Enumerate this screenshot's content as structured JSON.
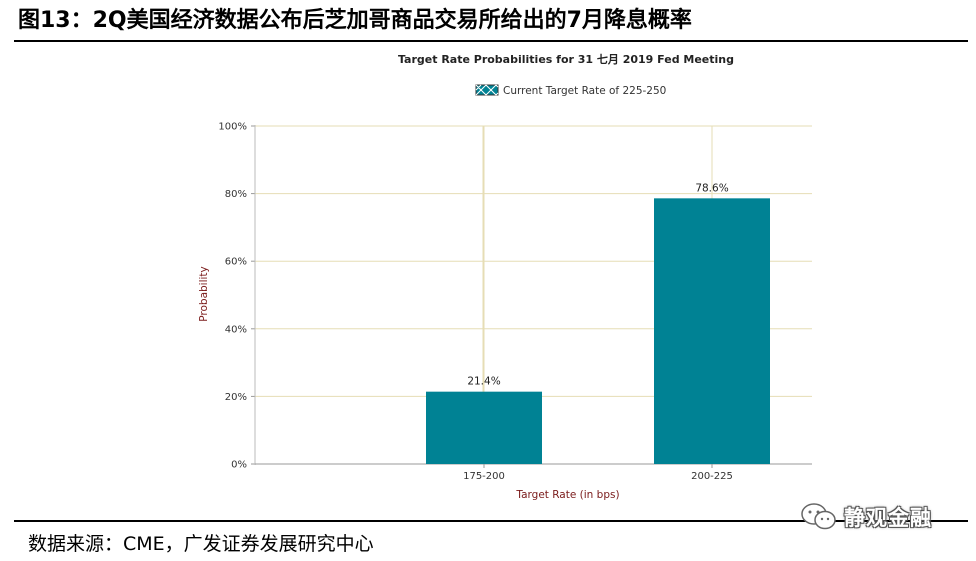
{
  "figure": {
    "title": "图13：2Q美国经济数据公布后芝加哥商品交易所给出的7月降息概率",
    "source": "数据来源：CME，广发证券发展研究中心"
  },
  "watermark": {
    "text": "静观金融",
    "icon": "wechat-icon"
  },
  "colors": {
    "bar": "#008294",
    "grid": "#E6DDB5",
    "axis_text": "#333333",
    "ylabel": "#7A1A1A"
  },
  "chart_data": {
    "type": "bar",
    "title": "Target Rate Probabilities for 31 七月 2019 Fed Meeting",
    "legend": {
      "entry": "Current Target Rate of 225-250",
      "position": "top"
    },
    "categories": [
      "175-200",
      "200-225"
    ],
    "series": [
      {
        "name": "Current Target Rate of 225-250",
        "values": [
          21.4,
          78.6
        ]
      }
    ],
    "data_labels": [
      "21.4%",
      "78.6%"
    ],
    "xlabel": "Target Rate (in bps)",
    "ylabel": "Probability",
    "ylim": [
      0,
      100
    ],
    "yticks": [
      0,
      20,
      40,
      60,
      80,
      100
    ],
    "ytick_labels": [
      "0%",
      "20%",
      "40%",
      "60%",
      "80%",
      "100%"
    ],
    "grid": true
  }
}
